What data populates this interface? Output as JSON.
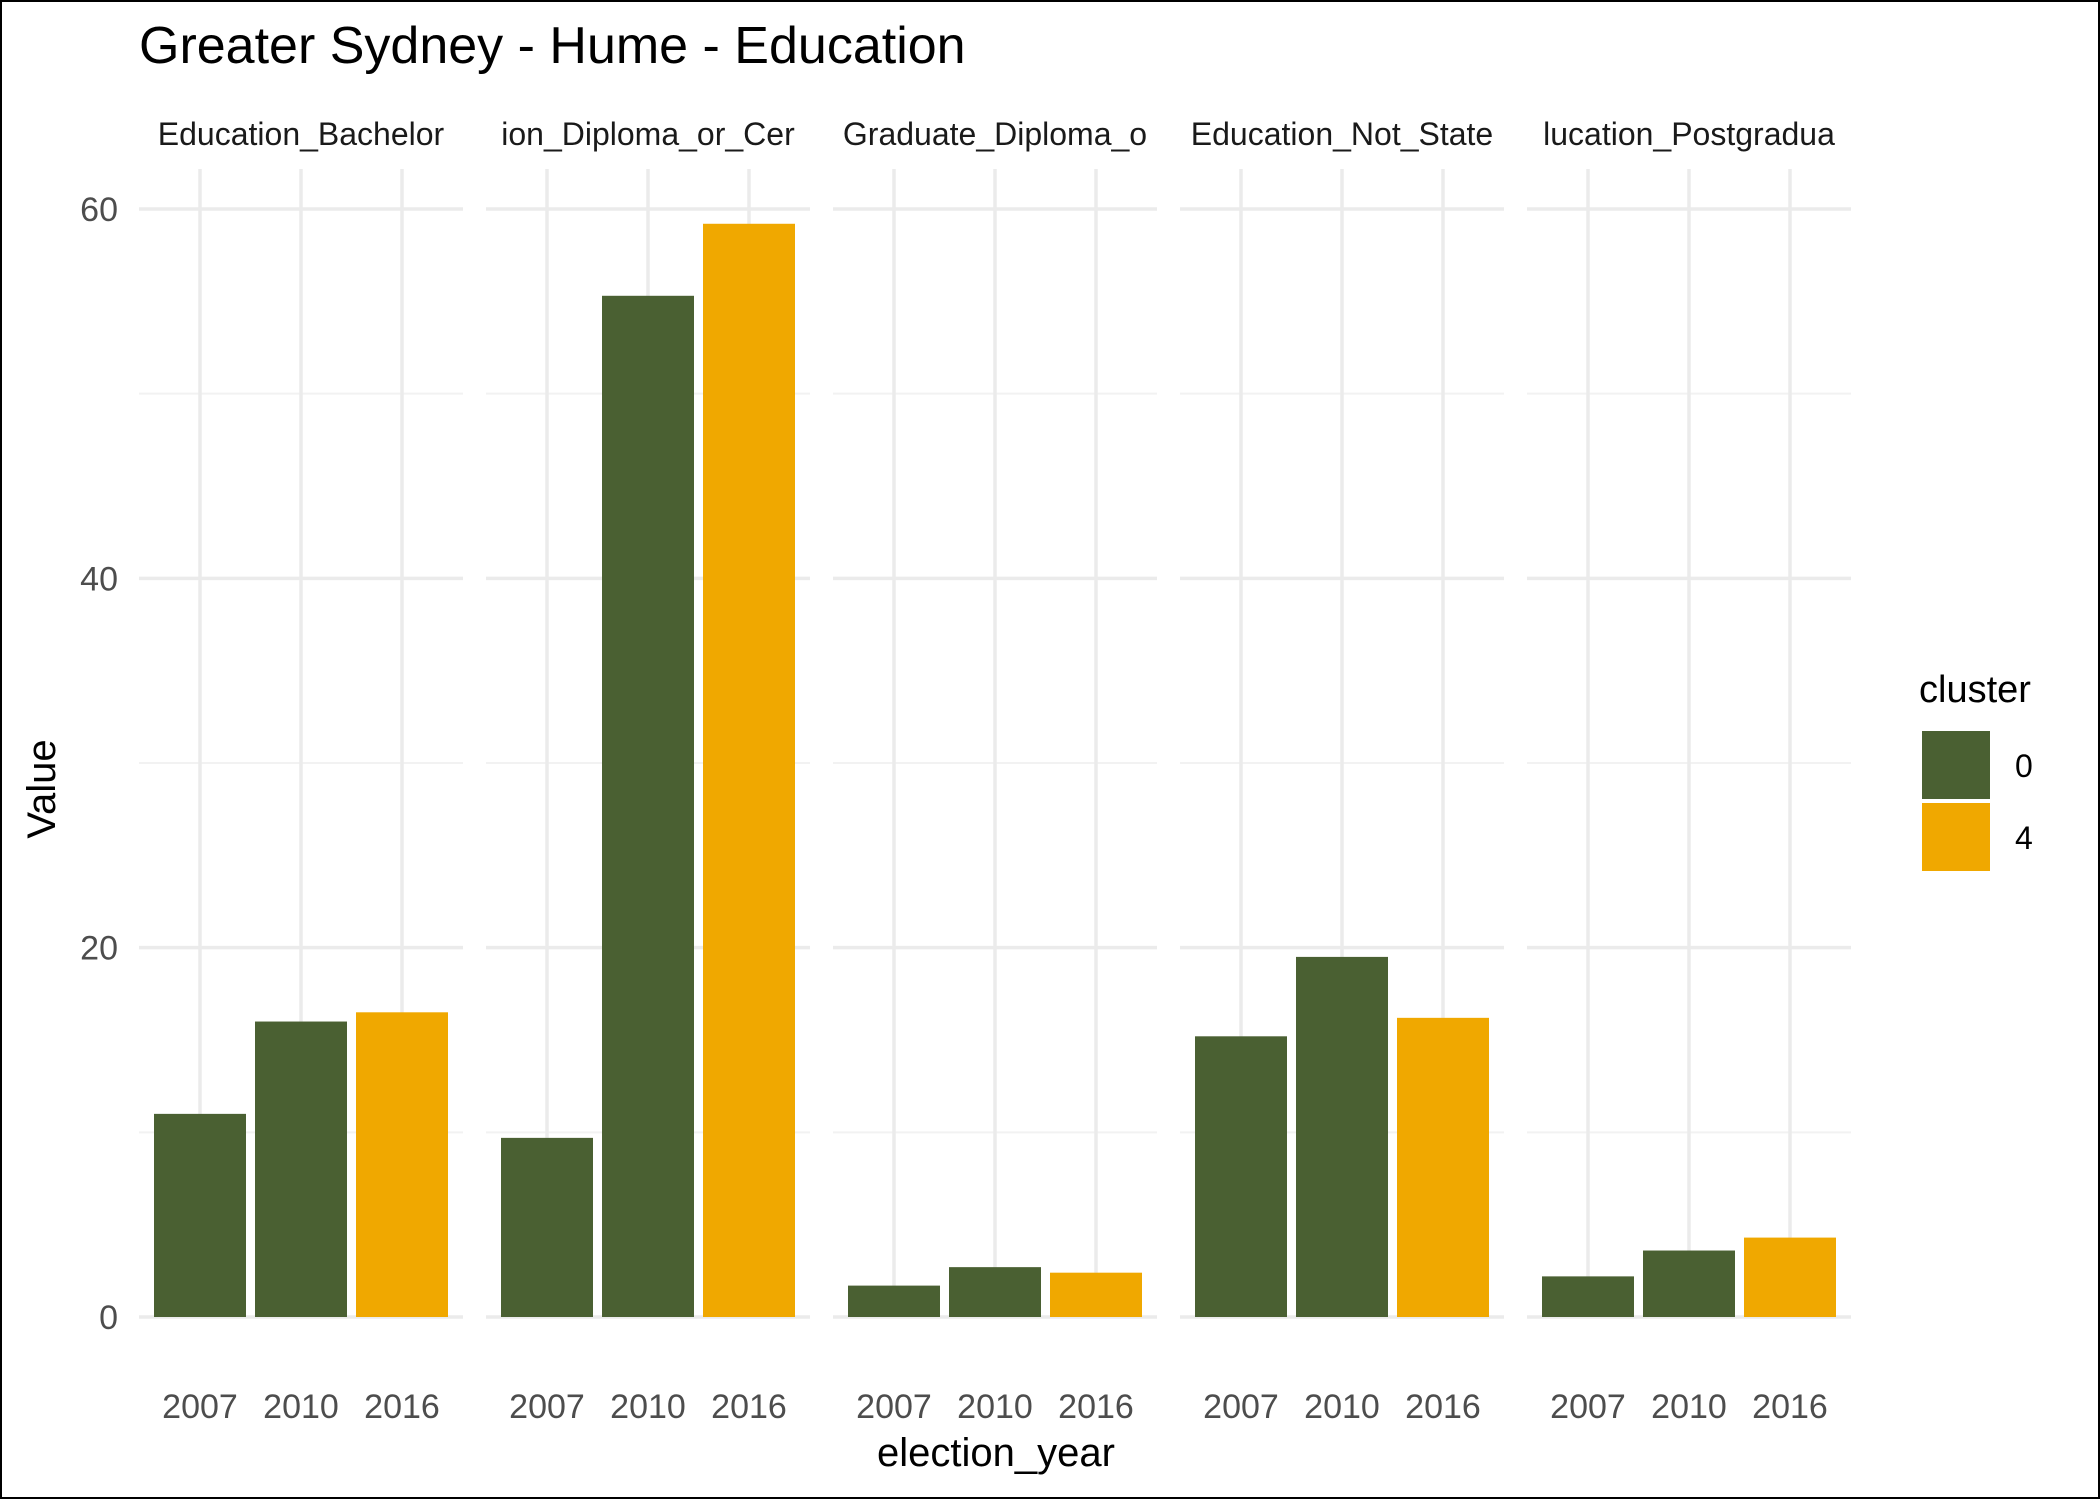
{
  "chart_data": {
    "type": "bar",
    "title": "Greater Sydney - Hume - Education",
    "xlabel": "election_year",
    "ylabel": "Value",
    "ylim": [
      0,
      62
    ],
    "yticks": [
      0,
      20,
      40,
      60
    ],
    "categories": [
      "2007",
      "2010",
      "2016"
    ],
    "grid": true,
    "legend": {
      "title": "cluster",
      "position": "right",
      "entries": [
        {
          "label": "0",
          "color": "#4a6032"
        },
        {
          "label": "4",
          "color": "#f0a800"
        }
      ]
    },
    "facets": [
      {
        "label": "Education_Bachelor",
        "values": [
          11.0,
          16.0,
          16.5
        ],
        "clusters": [
          "0",
          "0",
          "4"
        ]
      },
      {
        "label": "ion_Diploma_or_Cer",
        "values": [
          9.7,
          55.3,
          59.2
        ],
        "clusters": [
          "0",
          "0",
          "4"
        ]
      },
      {
        "label": "Graduate_Diploma_o",
        "values": [
          1.7,
          2.7,
          2.4
        ],
        "clusters": [
          "0",
          "0",
          "4"
        ]
      },
      {
        "label": "Education_Not_State",
        "values": [
          15.2,
          19.5,
          16.2
        ],
        "clusters": [
          "0",
          "0",
          "4"
        ]
      },
      {
        "label": "lucation_Postgradua",
        "values": [
          2.2,
          3.6,
          4.3
        ],
        "clusters": [
          "0",
          "0",
          "4"
        ]
      }
    ]
  }
}
